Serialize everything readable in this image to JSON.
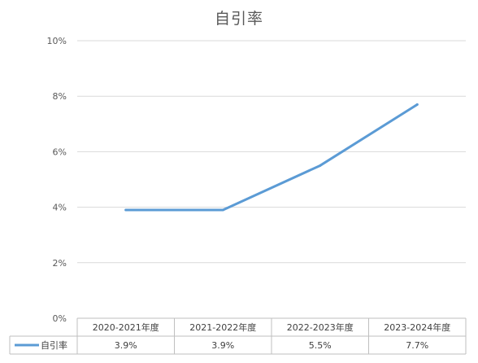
{
  "chart_data": {
    "type": "line",
    "title": "自引率",
    "categories": [
      "2020-2021年度",
      "2021-2022年度",
      "2022-2023年度",
      "2023-2024年度"
    ],
    "series": [
      {
        "name": "自引率",
        "values": [
          3.9,
          3.9,
          5.5,
          7.7
        ],
        "value_labels": [
          "3.9%",
          "3.9%",
          "5.5%",
          "7.7%"
        ],
        "color": "#5b9bd5"
      }
    ],
    "ylim": [
      0,
      10
    ],
    "y_ticks": [
      0,
      2,
      4,
      6,
      8,
      10
    ],
    "y_tick_labels": [
      "0%",
      "2%",
      "4%",
      "6%",
      "8%",
      "10%"
    ],
    "xlabel": "",
    "ylabel": "",
    "grid": true,
    "legend": "data-table"
  },
  "colors": {
    "gridline": "#d9d9d9",
    "table_border": "#bfbfbf",
    "text": "#595959"
  }
}
